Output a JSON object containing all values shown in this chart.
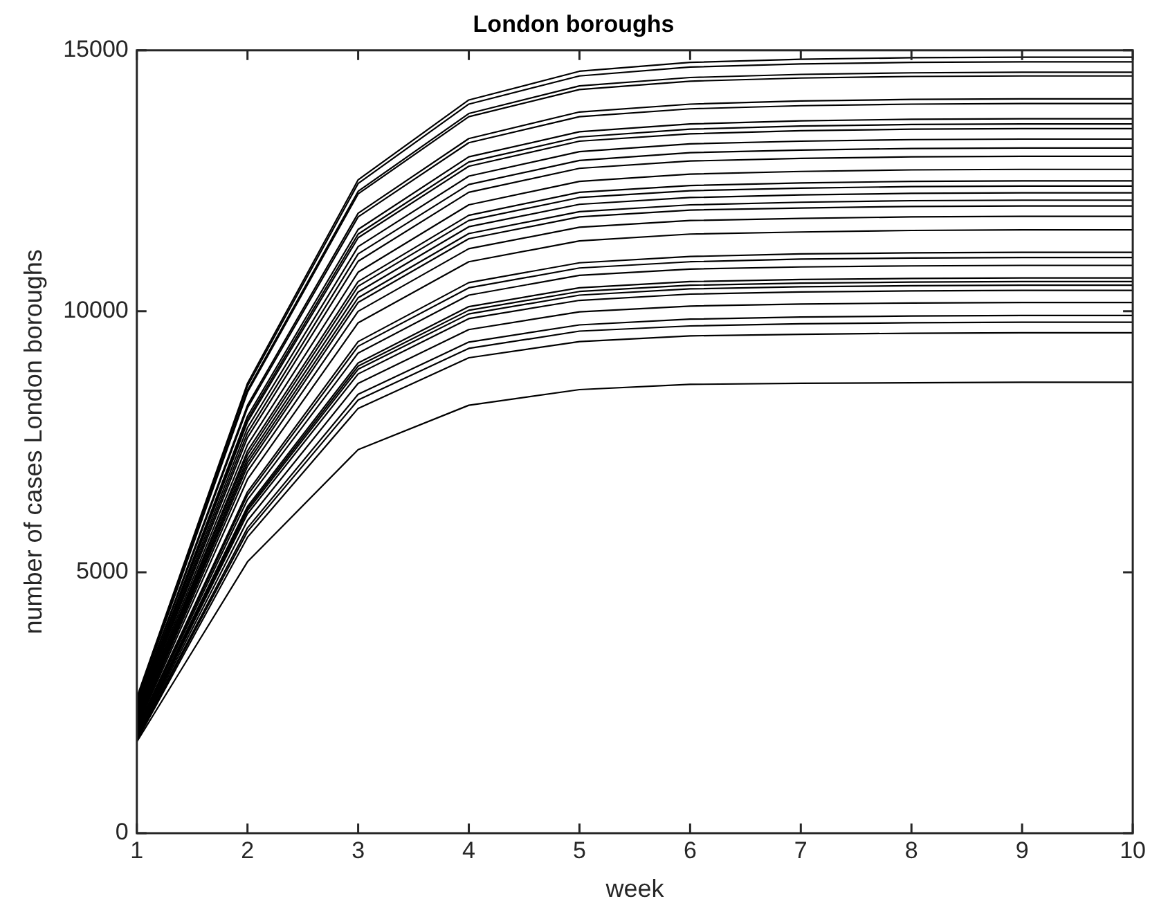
{
  "chart_data": {
    "type": "line",
    "title": "London boroughs",
    "xlabel": "week",
    "ylabel": "number of cases London boroughs",
    "x": [
      1,
      2,
      3,
      4,
      5,
      6,
      7,
      8,
      9,
      10
    ],
    "xlim": [
      1,
      10
    ],
    "xticks": [
      1,
      2,
      3,
      4,
      5,
      6,
      7,
      8,
      9,
      10
    ],
    "ylim": [
      0,
      15000
    ],
    "yticks": [
      0,
      5000,
      10000,
      15000
    ],
    "grid": false,
    "legend": false,
    "marker": "none",
    "line_style": "solid",
    "series": [
      {
        "color": "#000000",
        "values": [
          2600,
          8620,
          12520,
          14050,
          14600,
          14770,
          14830,
          14860,
          14870,
          14870
        ]
      },
      {
        "color": "#000000",
        "values": [
          2570,
          8570,
          12450,
          13970,
          14510,
          14680,
          14740,
          14770,
          14780,
          14780
        ]
      },
      {
        "color": "#000000",
        "values": [
          2540,
          8490,
          12300,
          13790,
          14320,
          14480,
          14540,
          14570,
          14580,
          14580
        ]
      },
      {
        "color": "#000000",
        "values": [
          2510,
          8450,
          12250,
          13730,
          14250,
          14410,
          14470,
          14500,
          14510,
          14510
        ]
      },
      {
        "color": "#000000",
        "values": [
          2480,
          8200,
          11880,
          13310,
          13820,
          13970,
          14030,
          14060,
          14070,
          14070
        ]
      },
      {
        "color": "#000000",
        "values": [
          2450,
          8150,
          11810,
          13230,
          13730,
          13880,
          13940,
          13970,
          13980,
          13980
        ]
      },
      {
        "color": "#000000",
        "values": [
          2420,
          7990,
          11570,
          12960,
          13440,
          13590,
          13650,
          13680,
          13690,
          13690
        ]
      },
      {
        "color": "#000000",
        "values": [
          2390,
          7930,
          11480,
          12860,
          13340,
          13490,
          13550,
          13580,
          13590,
          13590
        ]
      },
      {
        "color": "#000000",
        "values": [
          2360,
          7880,
          11410,
          12780,
          13260,
          13400,
          13460,
          13490,
          13500,
          13500
        ]
      },
      {
        "color": "#000000",
        "values": [
          2330,
          7770,
          11240,
          12590,
          13060,
          13210,
          13260,
          13290,
          13300,
          13300
        ]
      },
      {
        "color": "#000000",
        "values": [
          2300,
          7670,
          11100,
          12430,
          12890,
          13040,
          13090,
          13120,
          13130,
          13130
        ]
      },
      {
        "color": "#000000",
        "values": [
          2270,
          7580,
          10960,
          12280,
          12740,
          12880,
          12930,
          12960,
          12970,
          12970
        ]
      },
      {
        "color": "#000000",
        "values": [
          2240,
          7440,
          10750,
          12040,
          12490,
          12630,
          12680,
          12710,
          12720,
          12720
        ]
      },
      {
        "color": "#000000",
        "values": [
          2210,
          7320,
          10570,
          11840,
          12280,
          12410,
          12460,
          12490,
          12500,
          12500
        ]
      },
      {
        "color": "#000000",
        "values": [
          2180,
          7250,
          10480,
          11740,
          12180,
          12310,
          12360,
          12390,
          12400,
          12400
        ]
      },
      {
        "color": "#000000",
        "values": [
          2150,
          7170,
          10370,
          11620,
          12050,
          12180,
          12230,
          12260,
          12270,
          12270
        ]
      },
      {
        "color": "#000000",
        "values": [
          2120,
          7100,
          10260,
          11490,
          11910,
          12040,
          12090,
          12120,
          12130,
          12130
        ]
      },
      {
        "color": "#000000",
        "values": [
          2090,
          7030,
          10170,
          11390,
          11810,
          11940,
          11980,
          12010,
          12020,
          12020
        ]
      },
      {
        "color": "#000000",
        "values": [
          2060,
          6930,
          10000,
          11200,
          11610,
          11740,
          11780,
          11810,
          11820,
          11820
        ]
      },
      {
        "color": "#000000",
        "values": [
          2030,
          6780,
          9780,
          10950,
          11350,
          11480,
          11520,
          11550,
          11560,
          11560
        ]
      },
      {
        "color": "#000000",
        "values": [
          2000,
          6540,
          9420,
          10550,
          10930,
          11050,
          11100,
          11120,
          11130,
          11130
        ]
      },
      {
        "color": "#000000",
        "values": [
          1970,
          6480,
          9330,
          10450,
          10830,
          10950,
          11000,
          11020,
          11030,
          11030
        ]
      },
      {
        "color": "#000000",
        "values": [
          1940,
          6390,
          9200,
          10310,
          10690,
          10810,
          10850,
          10870,
          10880,
          10880
        ]
      },
      {
        "color": "#000000",
        "values": [
          1920,
          6260,
          9010,
          10090,
          10450,
          10570,
          10610,
          10630,
          10640,
          10640
        ]
      },
      {
        "color": "#000000",
        "values": [
          1890,
          6220,
          8950,
          10020,
          10380,
          10500,
          10540,
          10560,
          10570,
          10570
        ]
      },
      {
        "color": "#000000",
        "values": [
          1870,
          6180,
          8890,
          9950,
          10310,
          10430,
          10470,
          10490,
          10500,
          10500
        ]
      },
      {
        "color": "#000000",
        "values": [
          1850,
          6120,
          8800,
          9860,
          10210,
          10330,
          10370,
          10390,
          10400,
          10400
        ]
      },
      {
        "color": "#000000",
        "values": [
          1830,
          5990,
          8620,
          9650,
          9990,
          10100,
          10140,
          10160,
          10170,
          10170
        ]
      },
      {
        "color": "#000000",
        "values": [
          1810,
          5850,
          8410,
          9410,
          9740,
          9850,
          9890,
          9910,
          9920,
          9920
        ]
      },
      {
        "color": "#000000",
        "values": [
          1790,
          5780,
          8300,
          9290,
          9620,
          9720,
          9760,
          9780,
          9790,
          9790
        ]
      },
      {
        "color": "#000000",
        "values": [
          1770,
          5670,
          8140,
          9110,
          9420,
          9530,
          9560,
          9580,
          9590,
          9590
        ]
      },
      {
        "color": "#000000",
        "values": [
          1750,
          5200,
          7350,
          8200,
          8500,
          8600,
          8620,
          8630,
          8640,
          8640
        ]
      }
    ]
  }
}
